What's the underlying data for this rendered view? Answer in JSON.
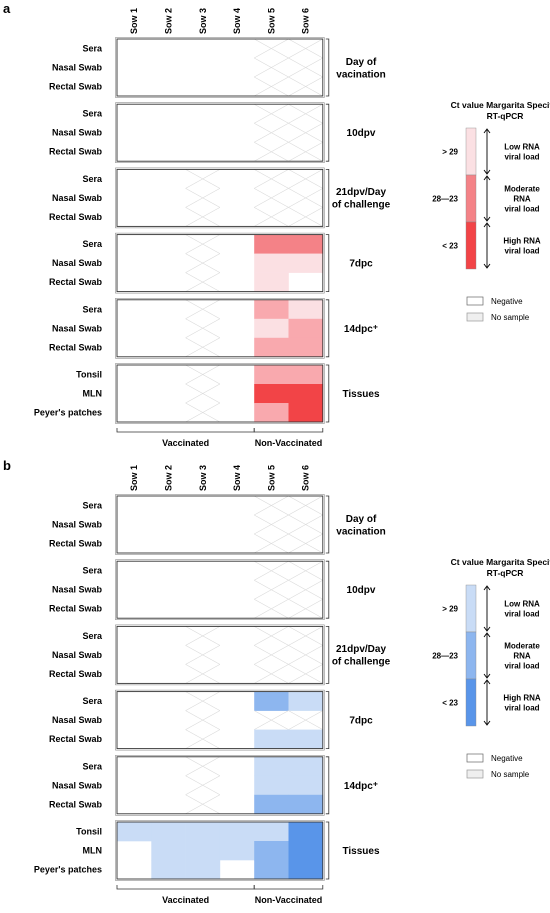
{
  "chart_data": [
    {
      "type": "heatmap",
      "panel_label": "a",
      "columns": [
        "Sow 1",
        "Sow 2",
        "Sow 3",
        "Sow 4",
        "Sow 5",
        "Sow 6"
      ],
      "groups": [
        {
          "name": "Day of vacination",
          "rows": [
            "Sera",
            "Nasal Swab",
            "Rectal Swab"
          ]
        },
        {
          "name": "10dpv",
          "rows": [
            "Sera",
            "Nasal Swab",
            "Rectal Swab"
          ]
        },
        {
          "name": "21dpv/Day of challenge",
          "rows": [
            "Sera",
            "Nasal Swab",
            "Rectal Swab"
          ]
        },
        {
          "name": "7dpc",
          "rows": [
            "Sera",
            "Nasal Swab",
            "Rectal Swab"
          ]
        },
        {
          "name": "14dpc⁺",
          "rows": [
            "Sera",
            "Nasal Swab",
            "Rectal Swab"
          ]
        },
        {
          "name": "Tissues",
          "rows": [
            "Tonsil",
            "MLN",
            "Peyer's patches"
          ]
        }
      ],
      "column_groups": [
        {
          "name": "Vaccinated",
          "columns": [
            0,
            3
          ]
        },
        {
          "name": "Non-Vaccinated",
          "columns": [
            4,
            5
          ]
        }
      ],
      "values": [
        [
          0,
          0,
          0,
          0,
          "x",
          "x"
        ],
        [
          0,
          0,
          0,
          0,
          "x",
          "x"
        ],
        [
          0,
          0,
          0,
          0,
          "x",
          "x"
        ],
        [
          0,
          0,
          0,
          0,
          "x",
          "x"
        ],
        [
          0,
          0,
          0,
          0,
          "x",
          "x"
        ],
        [
          0,
          0,
          0,
          0,
          "x",
          "x"
        ],
        [
          0,
          0,
          "x",
          0,
          "x",
          "x"
        ],
        [
          0,
          0,
          "x",
          0,
          "x",
          "x"
        ],
        [
          0,
          0,
          "x",
          0,
          "x",
          "x"
        ],
        [
          0,
          0,
          "x",
          0,
          3,
          3
        ],
        [
          0,
          0,
          "x",
          0,
          1,
          1
        ],
        [
          0,
          0,
          "x",
          0,
          1,
          0
        ],
        [
          0,
          0,
          "x",
          0,
          2,
          1
        ],
        [
          0,
          0,
          "x",
          0,
          1,
          2
        ],
        [
          0,
          0,
          "x",
          0,
          2,
          2
        ],
        [
          0,
          0,
          "x",
          0,
          2,
          2
        ],
        [
          0,
          0,
          "x",
          0,
          4,
          4
        ],
        [
          0,
          0,
          "x",
          0,
          2,
          4
        ]
      ],
      "legend": {
        "title": "Ct value Margarita Specific RT-qPCR",
        "levels": [
          {
            "ct": "> 29",
            "label": "Low RNA viral load"
          },
          {
            "ct": "28—23",
            "label": "Moderate RNA viral load"
          },
          {
            "ct": "< 23",
            "label": "High RNA viral load"
          }
        ],
        "negative": "Negative",
        "no_sample": "No sample"
      },
      "palette": [
        "#ffffff",
        "#fbe0e3",
        "#f9a9ae",
        "#f48287",
        "#f24447"
      ]
    },
    {
      "type": "heatmap",
      "panel_label": "b",
      "columns": [
        "Sow 1",
        "Sow 2",
        "Sow 3",
        "Sow 4",
        "Sow 5",
        "Sow 6"
      ],
      "groups": [
        {
          "name": "Day of vacination",
          "rows": [
            "Sera",
            "Nasal Swab",
            "Rectal Swab"
          ]
        },
        {
          "name": "10dpv",
          "rows": [
            "Sera",
            "Nasal Swab",
            "Rectal Swab"
          ]
        },
        {
          "name": "21dpv/Day of challenge",
          "rows": [
            "Sera",
            "Nasal Swab",
            "Rectal Swab"
          ]
        },
        {
          "name": "7dpc",
          "rows": [
            "Sera",
            "Nasal Swab",
            "Rectal Swab"
          ]
        },
        {
          "name": "14dpc⁺",
          "rows": [
            "Sera",
            "Nasal Swab",
            "Rectal Swab"
          ]
        },
        {
          "name": "Tissues",
          "rows": [
            "Tonsil",
            "MLN",
            "Peyer's patches"
          ]
        }
      ],
      "column_groups": [
        {
          "name": "Vaccinated",
          "columns": [
            0,
            3
          ]
        },
        {
          "name": "Non-Vaccinated",
          "columns": [
            4,
            5
          ]
        }
      ],
      "values": [
        [
          0,
          0,
          0,
          0,
          "x",
          "x"
        ],
        [
          0,
          0,
          0,
          0,
          "x",
          "x"
        ],
        [
          0,
          0,
          0,
          0,
          "x",
          "x"
        ],
        [
          0,
          0,
          0,
          0,
          "x",
          "x"
        ],
        [
          0,
          0,
          0,
          0,
          "x",
          "x"
        ],
        [
          0,
          0,
          0,
          0,
          "x",
          "x"
        ],
        [
          0,
          0,
          "x",
          0,
          "x",
          "x"
        ],
        [
          0,
          0,
          "x",
          0,
          "x",
          "x"
        ],
        [
          0,
          0,
          "x",
          0,
          "x",
          "x"
        ],
        [
          0,
          0,
          "x",
          0,
          2,
          1
        ],
        [
          0,
          0,
          "x",
          0,
          "x",
          "x"
        ],
        [
          0,
          0,
          "x",
          0,
          1,
          1
        ],
        [
          0,
          0,
          "x",
          0,
          1,
          1
        ],
        [
          0,
          0,
          "x",
          0,
          1,
          1
        ],
        [
          0,
          0,
          "x",
          0,
          2,
          2
        ],
        [
          1,
          1,
          1,
          1,
          1,
          3
        ],
        [
          0,
          1,
          1,
          1,
          2,
          3
        ],
        [
          0,
          1,
          1,
          0,
          2,
          3
        ]
      ],
      "legend": {
        "title": "Ct value Margarita Specific RT-qPCR",
        "levels": [
          {
            "ct": "> 29",
            "label": "Low RNA viral load"
          },
          {
            "ct": "28—23",
            "label": "Moderate RNA viral load"
          },
          {
            "ct": "< 23",
            "label": "High RNA viral load"
          }
        ],
        "negative": "Negative",
        "no_sample": "No sample"
      },
      "palette": [
        "#ffffff",
        "#c9dcf6",
        "#8db6ef",
        "#5995e9"
      ]
    }
  ]
}
